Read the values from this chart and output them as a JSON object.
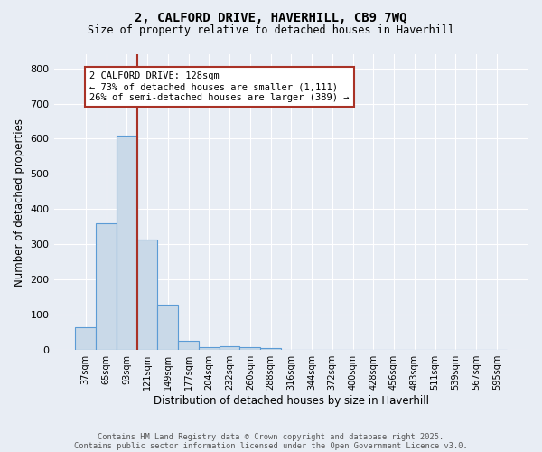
{
  "title_line1": "2, CALFORD DRIVE, HAVERHILL, CB9 7WQ",
  "title_line2": "Size of property relative to detached houses in Haverhill",
  "xlabel": "Distribution of detached houses by size in Haverhill",
  "ylabel": "Number of detached properties",
  "bar_labels": [
    "37sqm",
    "65sqm",
    "93sqm",
    "121sqm",
    "149sqm",
    "177sqm",
    "204sqm",
    "232sqm",
    "260sqm",
    "288sqm",
    "316sqm",
    "344sqm",
    "372sqm",
    "400sqm",
    "428sqm",
    "456sqm",
    "483sqm",
    "511sqm",
    "539sqm",
    "567sqm",
    "595sqm"
  ],
  "bar_values": [
    65,
    360,
    610,
    315,
    128,
    27,
    8,
    10,
    8,
    5,
    0,
    0,
    0,
    0,
    0,
    0,
    0,
    0,
    0,
    0,
    0
  ],
  "bar_color": "#c9d9e8",
  "bar_edge_color": "#5b9bd5",
  "background_color": "#e8edf4",
  "grid_color": "#ffffff",
  "annotation_text": "2 CALFORD DRIVE: 128sqm\n← 73% of detached houses are smaller (1,111)\n26% of semi-detached houses are larger (389) →",
  "vline_color": "#a93226",
  "annotation_box_color": "#ffffff",
  "annotation_box_edge": "#a93226",
  "ylim": [
    0,
    840
  ],
  "yticks": [
    0,
    100,
    200,
    300,
    400,
    500,
    600,
    700,
    800
  ],
  "footer_line1": "Contains HM Land Registry data © Crown copyright and database right 2025.",
  "footer_line2": "Contains public sector information licensed under the Open Government Licence v3.0."
}
